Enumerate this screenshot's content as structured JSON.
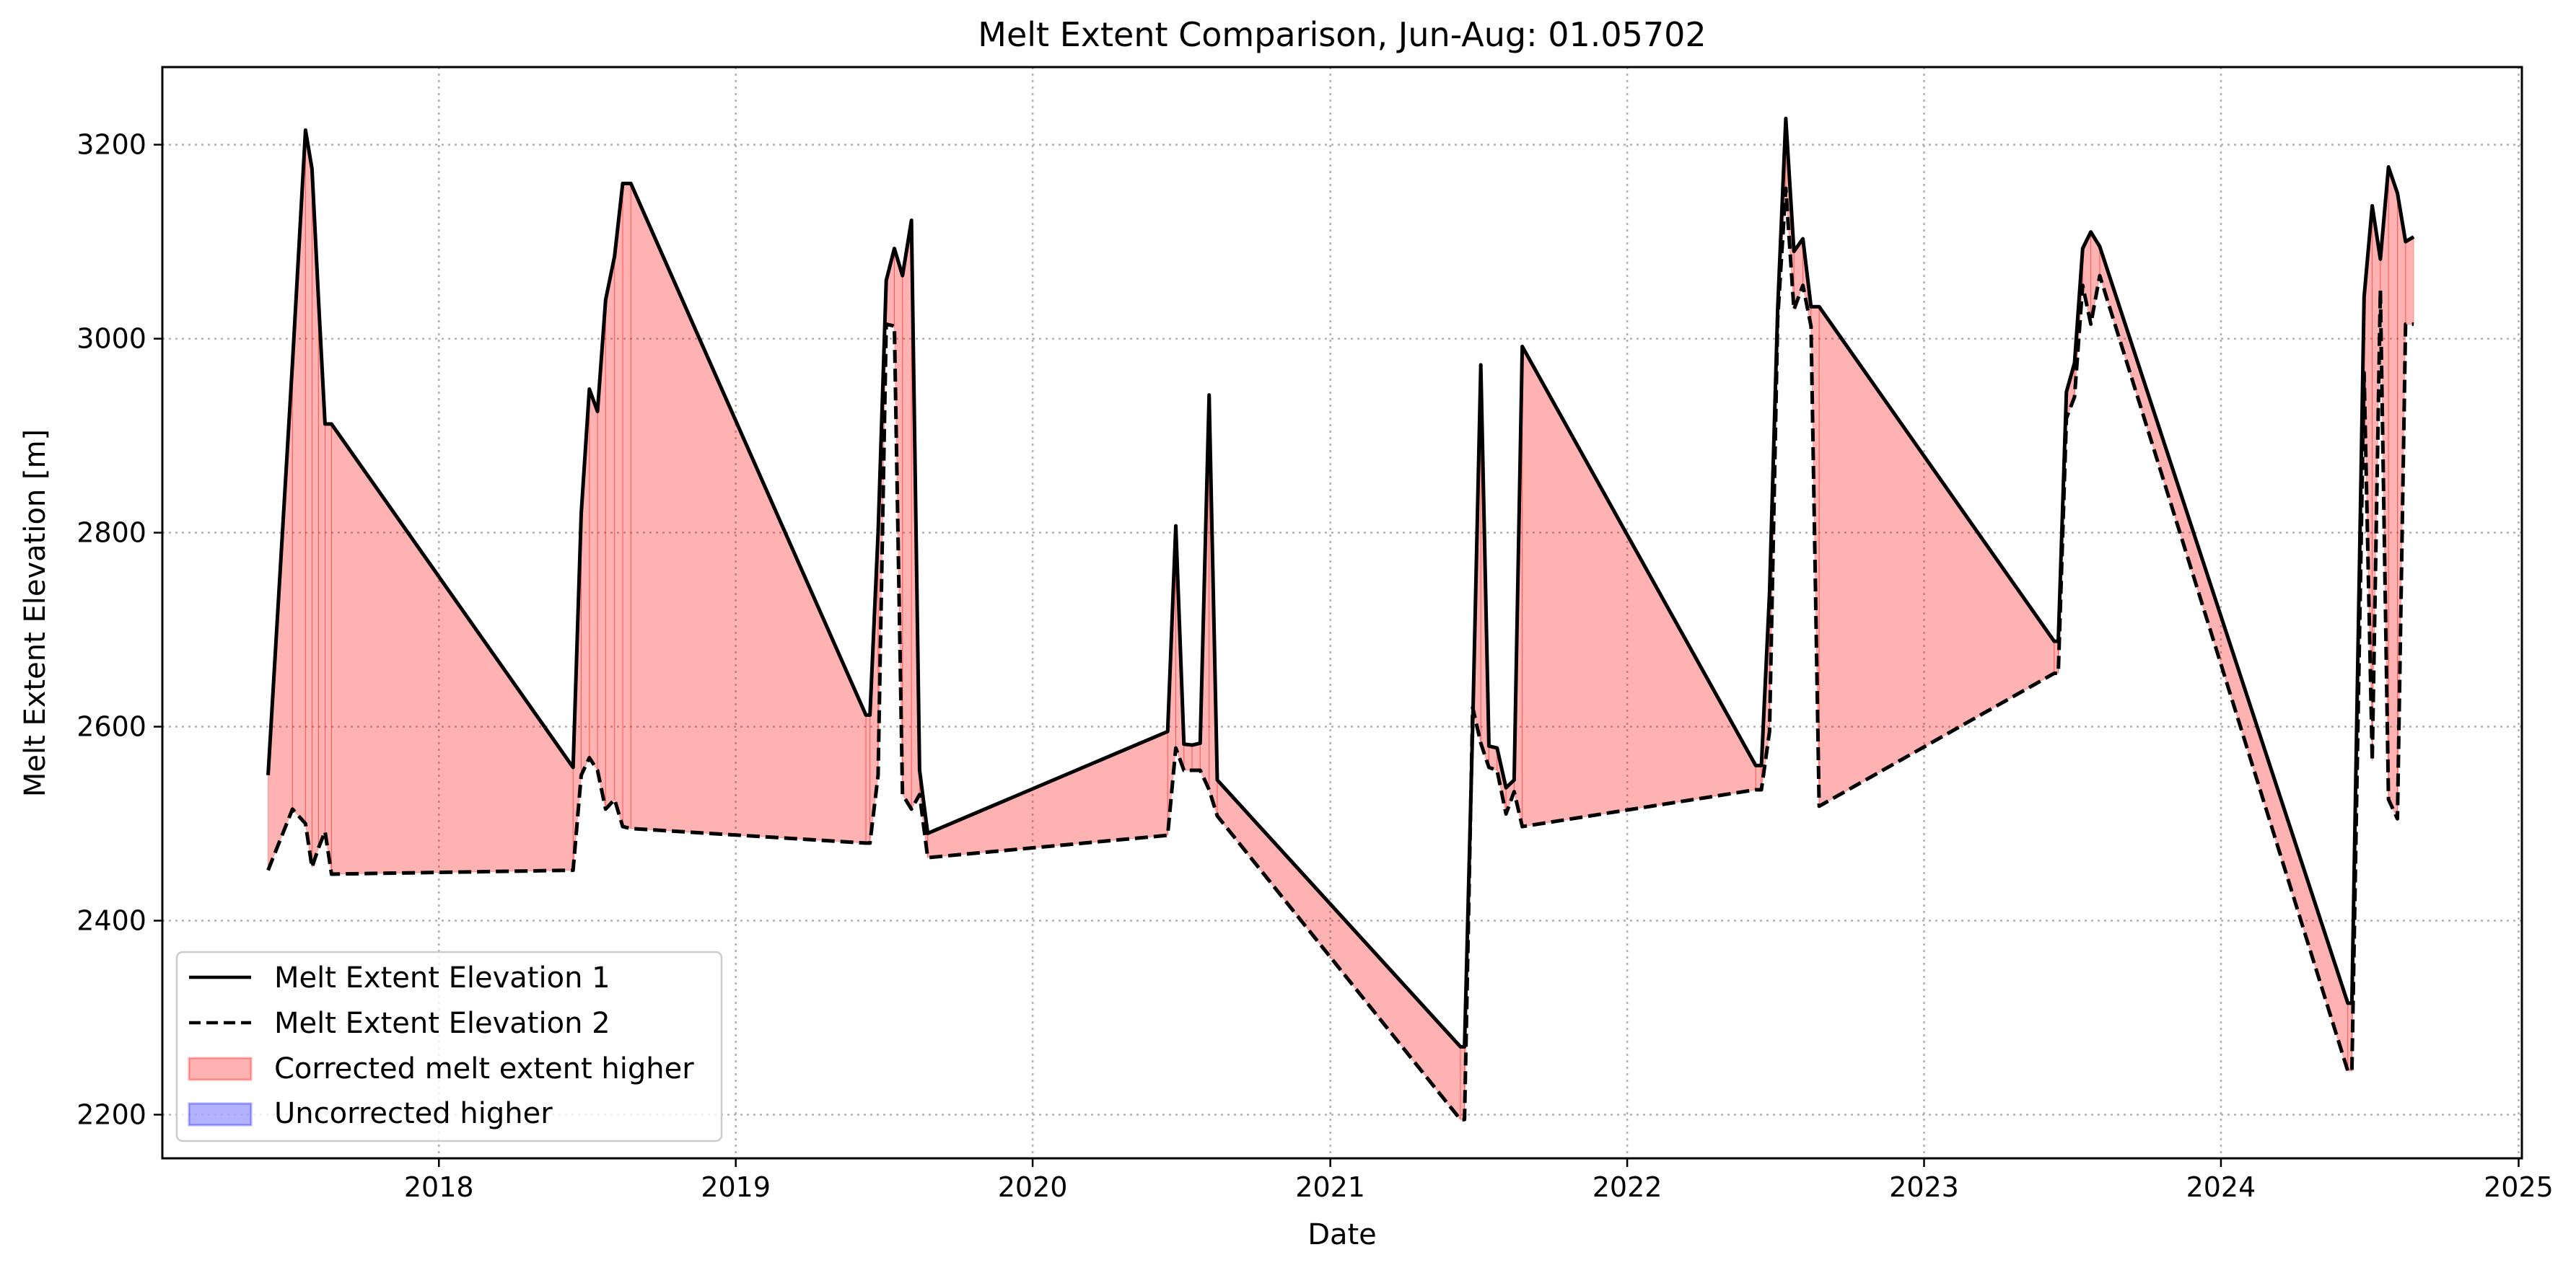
{
  "chart_data": {
    "type": "line",
    "title": "Melt Extent Comparison, Jun-Aug: 01.05702",
    "xlabel": "Date",
    "ylabel": "Melt Extent Elevation [m]",
    "xlim": [
      "2017-01-26",
      "2025-01-05"
    ],
    "ylim": [
      2155,
      3280
    ],
    "xticks": [
      "2018",
      "2019",
      "2020",
      "2021",
      "2022",
      "2023",
      "2024",
      "2025"
    ],
    "yticks": [
      2200,
      2400,
      2600,
      2800,
      3000,
      3200
    ],
    "grid": true,
    "legend_position": "lower-left",
    "legend": [
      "Melt Extent Elevation 1",
      "Melt Extent Elevation 2",
      "Corrected melt extent higher",
      "Uncorrected higher"
    ],
    "colors": {
      "line": "#000000",
      "corrected_fill": "#ff0000",
      "uncorrected_fill": "#0000ff",
      "grid": "#b0b0b0"
    },
    "series": [
      {
        "name": "Melt Extent Elevation 1",
        "style": "solid",
        "x": [
          "2017-06-05",
          "2017-07-05",
          "2017-07-21",
          "2017-07-29",
          "2017-08-06",
          "2017-08-14",
          "2017-08-22",
          "2018-06-15",
          "2018-06-25",
          "2018-07-05",
          "2018-07-15",
          "2018-07-25",
          "2018-08-05",
          "2018-08-15",
          "2018-08-25",
          "2019-06-10",
          "2019-06-15",
          "2019-06-25",
          "2019-07-05",
          "2019-07-15",
          "2019-07-25",
          "2019-08-05",
          "2019-08-15",
          "2019-08-25",
          "2020-06-15",
          "2020-06-25",
          "2020-07-05",
          "2020-07-15",
          "2020-07-25",
          "2020-08-05",
          "2020-08-15",
          "2021-06-10",
          "2021-06-15",
          "2021-06-25",
          "2021-07-05",
          "2021-07-15",
          "2021-07-25",
          "2021-08-05",
          "2021-08-15",
          "2021-08-25",
          "2022-06-08",
          "2022-06-15",
          "2022-06-25",
          "2022-07-05",
          "2022-07-15",
          "2022-07-25",
          "2022-08-05",
          "2022-08-15",
          "2022-08-25",
          "2023-06-10",
          "2023-06-15",
          "2023-06-25",
          "2023-07-05",
          "2023-07-15",
          "2023-07-25",
          "2023-08-05",
          "2024-06-05",
          "2024-06-10",
          "2024-06-25",
          "2024-07-05",
          "2024-07-15",
          "2024-07-25",
          "2024-08-05",
          "2024-08-15",
          "2024-08-25"
        ],
        "y": [
          2550,
          2975,
          3215,
          3175,
          3040,
          2912,
          2912,
          2558,
          2820,
          2948,
          2925,
          3040,
          3085,
          3160,
          3160,
          2612,
          2612,
          2800,
          3060,
          3093,
          3065,
          3122,
          2555,
          2490,
          2595,
          2807,
          2582,
          2581,
          2583,
          2942,
          2545,
          2270,
          2270,
          2600,
          2973,
          2580,
          2578,
          2537,
          2545,
          2992,
          2560,
          2560,
          2738,
          3030,
          3227,
          3090,
          3103,
          3033,
          3033,
          2688,
          2688,
          2945,
          2975,
          3093,
          3110,
          3095,
          2315,
          2315,
          3043,
          3137,
          3082,
          3177,
          3150,
          3100,
          3105
        ]
      },
      {
        "name": "Melt Extent Elevation 2",
        "style": "dashed",
        "x": [
          "2017-06-05",
          "2017-07-05",
          "2017-07-21",
          "2017-07-29",
          "2017-08-06",
          "2017-08-14",
          "2017-08-22",
          "2018-06-15",
          "2018-06-25",
          "2018-07-05",
          "2018-07-15",
          "2018-07-25",
          "2018-08-05",
          "2018-08-15",
          "2018-08-25",
          "2019-06-10",
          "2019-06-15",
          "2019-06-25",
          "2019-07-05",
          "2019-07-15",
          "2019-07-25",
          "2019-08-05",
          "2019-08-15",
          "2019-08-25",
          "2020-06-15",
          "2020-06-25",
          "2020-07-05",
          "2020-07-15",
          "2020-07-25",
          "2020-08-05",
          "2020-08-15",
          "2021-06-10",
          "2021-06-15",
          "2021-06-25",
          "2021-07-05",
          "2021-07-15",
          "2021-07-25",
          "2021-08-05",
          "2021-08-15",
          "2021-08-25",
          "2022-06-08",
          "2022-06-15",
          "2022-06-25",
          "2022-07-05",
          "2022-07-15",
          "2022-07-25",
          "2022-08-05",
          "2022-08-15",
          "2022-08-25",
          "2023-06-10",
          "2023-06-15",
          "2023-06-25",
          "2023-07-05",
          "2023-07-15",
          "2023-07-25",
          "2023-08-05",
          "2024-06-05",
          "2024-06-10",
          "2024-06-25",
          "2024-07-05",
          "2024-07-15",
          "2024-07-25",
          "2024-08-05",
          "2024-08-15",
          "2024-08-25"
        ],
        "y": [
          2452,
          2515,
          2500,
          2455,
          2475,
          2492,
          2448,
          2452,
          2550,
          2568,
          2555,
          2515,
          2525,
          2497,
          2495,
          2480,
          2480,
          2550,
          3015,
          3013,
          2530,
          2515,
          2530,
          2465,
          2488,
          2578,
          2555,
          2555,
          2555,
          2535,
          2508,
          2195,
          2195,
          2620,
          2583,
          2558,
          2555,
          2510,
          2533,
          2497,
          2535,
          2535,
          2595,
          3020,
          3155,
          3030,
          3055,
          3013,
          2518,
          2655,
          2655,
          2918,
          2940,
          3055,
          3015,
          3065,
          2245,
          2245,
          2965,
          2565,
          3050,
          2525,
          2505,
          3015,
          3015
        ]
      }
    ]
  }
}
